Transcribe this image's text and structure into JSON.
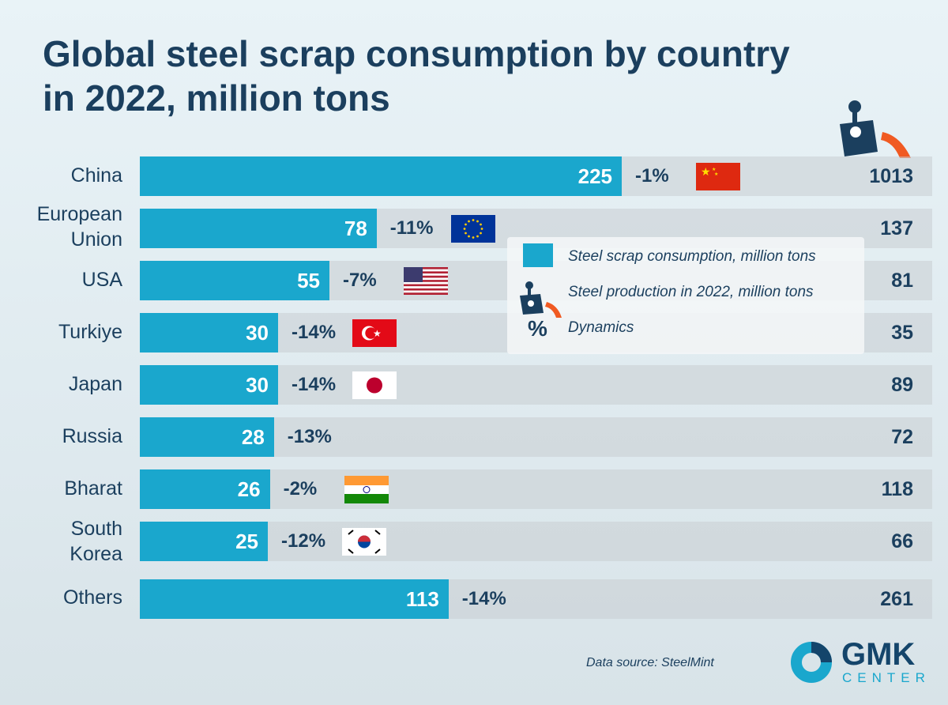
{
  "title_line1": "Global steel scrap consumption by country",
  "title_line2": "in 2022, million tons",
  "legend": {
    "scrap": "Steel scrap consumption, million tons",
    "production": "Steel production in 2022, million tons",
    "dynamics_symbol": "%",
    "dynamics": "Dynamics"
  },
  "source": "Data source: SteelMint",
  "logo": {
    "main": "GMK",
    "sub": "CENTER"
  },
  "colors": {
    "bar": "#1aa7cd",
    "text": "#1b3f5e",
    "accent": "#f05a22"
  },
  "chart_data": {
    "type": "bar",
    "orientation": "horizontal",
    "title": "Global steel scrap consumption by country in 2022, million tons",
    "categories": [
      "China",
      "European Union",
      "USA",
      "Turkiye",
      "Japan",
      "Russia",
      "Bharat",
      "South Korea",
      "Others"
    ],
    "series": [
      {
        "name": "Steel scrap consumption, million tons",
        "values": [
          225,
          78,
          55,
          30,
          30,
          28,
          26,
          25,
          113
        ]
      },
      {
        "name": "Dynamics",
        "values": [
          "-1%",
          "-11%",
          "-7%",
          "-14%",
          "-14%",
          "-13%",
          "-2%",
          "-12%",
          "-14%"
        ]
      },
      {
        "name": "Steel production in 2022, million tons",
        "values": [
          1013,
          137,
          81,
          35,
          89,
          72,
          118,
          66,
          261
        ]
      }
    ],
    "flags": [
      "china",
      "eu",
      "usa",
      "turkey",
      "japan",
      null,
      "india",
      "south-korea",
      null
    ]
  }
}
